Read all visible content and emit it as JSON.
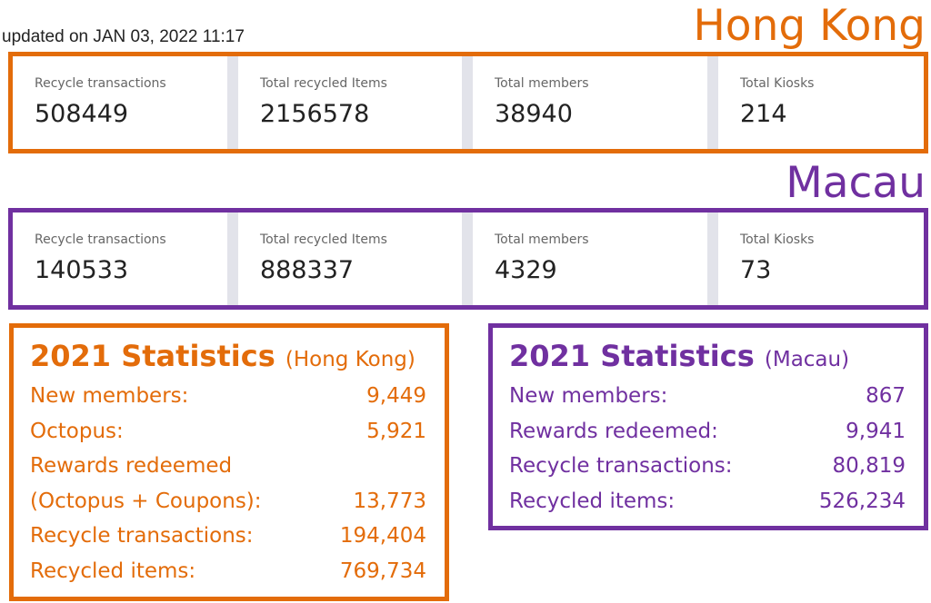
{
  "updated": "updated on JAN 03, 2022 11:17",
  "hong_kong": {
    "title": "Hong Kong",
    "kpis": [
      {
        "label": "Recycle transactions",
        "value": "508449"
      },
      {
        "label": "Total recycled Items",
        "value": "2156578"
      },
      {
        "label": "Total members",
        "value": "38940"
      },
      {
        "label": "Total Kiosks",
        "value": "214"
      }
    ],
    "stats": {
      "heading": "2021 Statistics",
      "heading_sub": "(Hong Kong)",
      "rows": [
        {
          "label": "New members:",
          "value": "9,449"
        },
        {
          "label": "Octopus:",
          "value": "5,921"
        },
        {
          "label": "Rewards redeemed",
          "value": ""
        },
        {
          "label": "(Octopus + Coupons):",
          "value": "13,773"
        },
        {
          "label": "Recycle transactions:",
          "value": "194,404"
        },
        {
          "label": "Recycled items:",
          "value": "769,734"
        }
      ]
    }
  },
  "macau": {
    "title": "Macau",
    "kpis": [
      {
        "label": "Recycle transactions",
        "value": "140533"
      },
      {
        "label": "Total recycled Items",
        "value": "888337"
      },
      {
        "label": "Total members",
        "value": "4329"
      },
      {
        "label": "Total Kiosks",
        "value": "73"
      }
    ],
    "stats": {
      "heading": "2021 Statistics",
      "heading_sub": "(Macau)",
      "rows": [
        {
          "label": "New members:",
          "value": "867"
        },
        {
          "label": "Rewards redeemed:",
          "value": "9,941"
        },
        {
          "label": "Recycle transactions:",
          "value": "80,819"
        },
        {
          "label": "Recycled items:",
          "value": "526,234"
        }
      ]
    }
  },
  "colors": {
    "hong_kong": "#e36c0a",
    "macau": "#7030a0",
    "card_divider": "#e2e3ea"
  }
}
